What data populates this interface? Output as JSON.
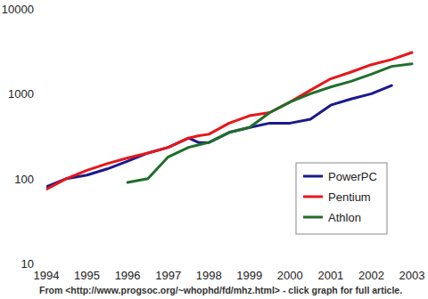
{
  "chart_data": {
    "type": "line",
    "caption": "From <http://www.progsoc.org/~whophd/fd/mhz.html> - click graph for full article.",
    "x": [
      1994,
      1994.5,
      1995,
      1995.5,
      1996,
      1996.5,
      1997,
      1997.5,
      1997.75,
      1998,
      1998.5,
      1999,
      1999.5,
      2000,
      2000.5,
      2001,
      2001.5,
      2002,
      2002.5,
      2003
    ],
    "xlim": [
      1994,
      2003
    ],
    "xticks": [
      1994,
      1995,
      1996,
      1997,
      1998,
      1999,
      2000,
      2001,
      2002,
      2003
    ],
    "ylim": [
      10,
      10000
    ],
    "yticks": [
      10,
      100,
      1000,
      10000
    ],
    "log": "y",
    "grid": false,
    "legend": "right",
    "series": [
      {
        "name": "PowerPC",
        "color": "#1a1a8c",
        "values": [
          80,
          100,
          110,
          130,
          160,
          200,
          233,
          300,
          266,
          266,
          350,
          400,
          450,
          450,
          500,
          733,
          867,
          1000,
          1250,
          null
        ]
      },
      {
        "name": "Pentium",
        "color": "#e8161a",
        "values": [
          75,
          100,
          125,
          150,
          175,
          200,
          233,
          300,
          320,
          333,
          450,
          550,
          600,
          800,
          1100,
          1500,
          1800,
          2200,
          2533,
          3060
        ]
      },
      {
        "name": "Athlon",
        "color": "#1f6e2a",
        "values": [
          null,
          null,
          null,
          null,
          90,
          100,
          180,
          233,
          250,
          266,
          350,
          400,
          600,
          800,
          1000,
          1200,
          1400,
          1700,
          2100,
          2250
        ]
      }
    ]
  }
}
